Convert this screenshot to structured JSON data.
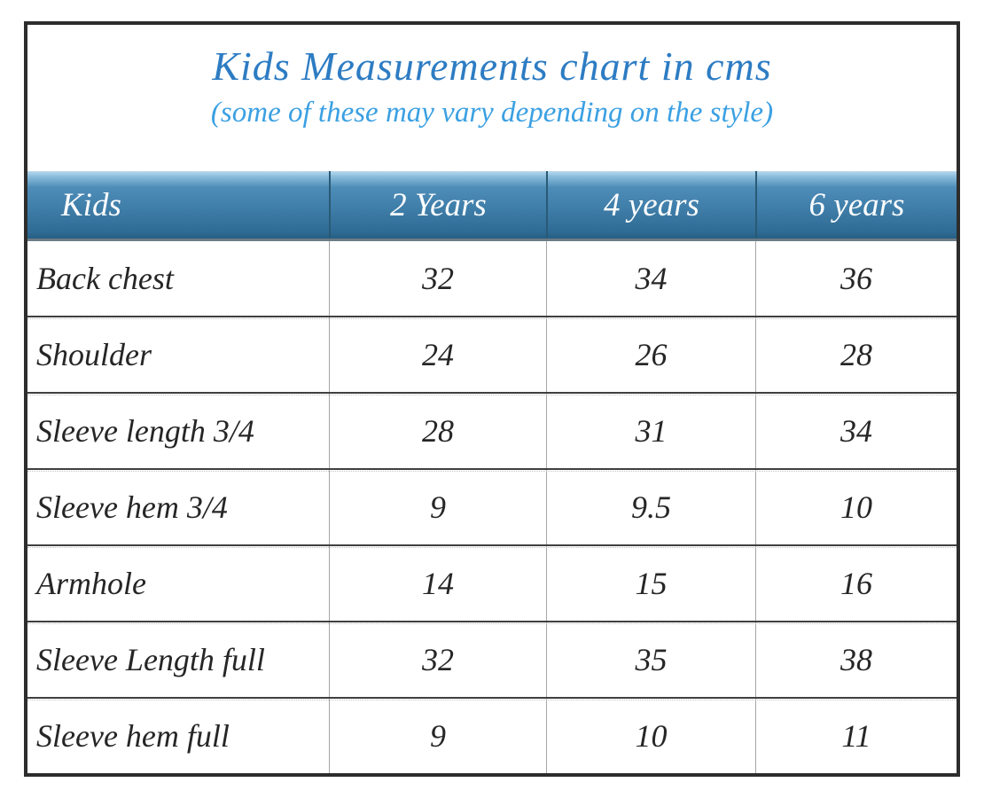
{
  "title": "Kids Measurements chart in cms",
  "subtitle": "(some of these may vary depending on the style)",
  "colors": {
    "title_blue": "#2d7cc3",
    "subtitle_blue": "#3ba0e2",
    "header_gradient_top": "#bcdaee",
    "header_gradient_mid": "#3f7ea9",
    "header_gradient_bottom": "#255e82",
    "header_text": "#fcfdfe",
    "body_text": "#262626",
    "outer_border": "#2d2d2d"
  },
  "table": {
    "columns": [
      "Kids",
      "2 Years",
      "4 years",
      "6 years"
    ],
    "rows": [
      {
        "label": "Back chest",
        "values": [
          "32",
          "34",
          "36"
        ]
      },
      {
        "label": "Shoulder",
        "values": [
          "24",
          "26",
          "28"
        ]
      },
      {
        "label": "Sleeve length 3/4",
        "values": [
          "28",
          "31",
          "34"
        ]
      },
      {
        "label": "Sleeve hem 3/4",
        "values": [
          "9",
          "9.5",
          "10"
        ]
      },
      {
        "label": "Armhole",
        "values": [
          "14",
          "15",
          "16"
        ]
      },
      {
        "label": "Sleeve Length full",
        "values": [
          "32",
          "35",
          "38"
        ]
      },
      {
        "label": "Sleeve hem full",
        "values": [
          "9",
          "10",
          "11"
        ]
      }
    ]
  },
  "chart_data": {
    "type": "table",
    "title": "Kids Measurements chart in cms",
    "subtitle": "(some of these may vary depending on the style)",
    "columns": [
      "Kids",
      "2 Years",
      "4 years",
      "6 years"
    ],
    "rows": [
      [
        "Back chest",
        32,
        34,
        36
      ],
      [
        "Shoulder",
        24,
        26,
        28
      ],
      [
        "Sleeve length 3/4",
        28,
        31,
        34
      ],
      [
        "Sleeve hem 3/4",
        9,
        9.5,
        10
      ],
      [
        "Armhole",
        14,
        15,
        16
      ],
      [
        "Sleeve Length full",
        32,
        35,
        38
      ],
      [
        "Sleeve hem full",
        9,
        10,
        11
      ]
    ],
    "units": "cms"
  }
}
